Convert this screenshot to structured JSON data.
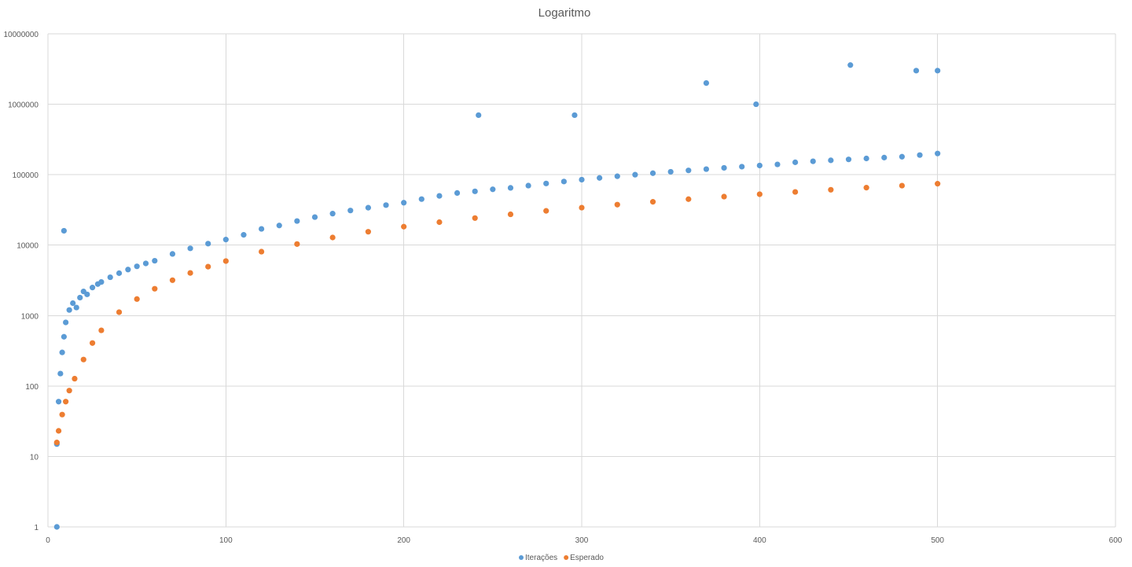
{
  "chart_data": {
    "type": "scatter",
    "title": "Logaritmo",
    "xlabel": "",
    "ylabel": "",
    "x_scale": "linear",
    "y_scale": "log",
    "xlim": [
      0,
      600
    ],
    "ylim": [
      1,
      10000000
    ],
    "x_ticks": [
      "0",
      "100",
      "200",
      "300",
      "400",
      "500",
      "600"
    ],
    "y_ticks": [
      "1",
      "10",
      "100",
      "1000",
      "10000",
      "100000",
      "1000000",
      "10000000"
    ],
    "grid": true,
    "legend": "bottom-center",
    "series": [
      {
        "name": "Iterações",
        "color": "#5b9bd5",
        "x": [
          5,
          6,
          7,
          8,
          9,
          10,
          12,
          14,
          16,
          18,
          20,
          22,
          25,
          28,
          30,
          35,
          40,
          45,
          50,
          55,
          60,
          70,
          80,
          90,
          100,
          110,
          120,
          130,
          140,
          150,
          160,
          170,
          180,
          190,
          200,
          210,
          220,
          230,
          240,
          250,
          260,
          270,
          280,
          290,
          300,
          310,
          320,
          330,
          340,
          350,
          360,
          370,
          380,
          390,
          400,
          410,
          420,
          430,
          440,
          450,
          460,
          470,
          480,
          490,
          500,
          5,
          9,
          242,
          296,
          370,
          398,
          451,
          488,
          500
        ],
        "y": [
          1,
          60,
          150,
          300,
          500,
          800,
          1200,
          1500,
          1300,
          1800,
          2200,
          2000,
          2500,
          2800,
          3000,
          3500,
          4000,
          4500,
          5000,
          5500,
          6000,
          7500,
          9000,
          10500,
          12000,
          14000,
          17000,
          19000,
          22000,
          25000,
          28000,
          31000,
          34000,
          37000,
          40000,
          45000,
          50000,
          55000,
          58000,
          62000,
          65000,
          70000,
          75000,
          80000,
          85000,
          90000,
          95000,
          100000,
          105000,
          110000,
          115000,
          120000,
          125000,
          130000,
          135000,
          140000,
          150000,
          155000,
          160000,
          165000,
          170000,
          175000,
          180000,
          190000,
          200000,
          15,
          16000,
          700000,
          700000,
          2000000,
          1000000,
          3600000,
          3000000,
          3000000
        ]
      },
      {
        "name": "Esperado",
        "color": "#ed7d31",
        "x": [
          5,
          6,
          8,
          10,
          12,
          15,
          20,
          25,
          30,
          40,
          50,
          60,
          70,
          80,
          90,
          100,
          120,
          140,
          160,
          180,
          200,
          220,
          240,
          260,
          280,
          300,
          320,
          340,
          360,
          380,
          400,
          420,
          440,
          460,
          480,
          500
        ],
        "y": [
          15.8,
          23.1,
          39.3,
          60.0,
          86.1,
          127.1,
          237.6,
          407.4,
          616.8,
          1117.3,
          1716.5,
          2404.0,
          3178.1,
          4027.2,
          4947.4,
          5939.8,
          8077.0,
          10359.4,
          12840.4,
          15499.0,
          18280.5,
          21187.8,
          24221.6,
          27380.3,
          30658.8,
          34056.0,
          37571.4,
          41204.7,
          44955.5,
          48823.3,
          52807.9,
          56909.0,
          61125.7,
          65457.6,
          69904.0,
          74464.2
        ]
      }
    ]
  }
}
